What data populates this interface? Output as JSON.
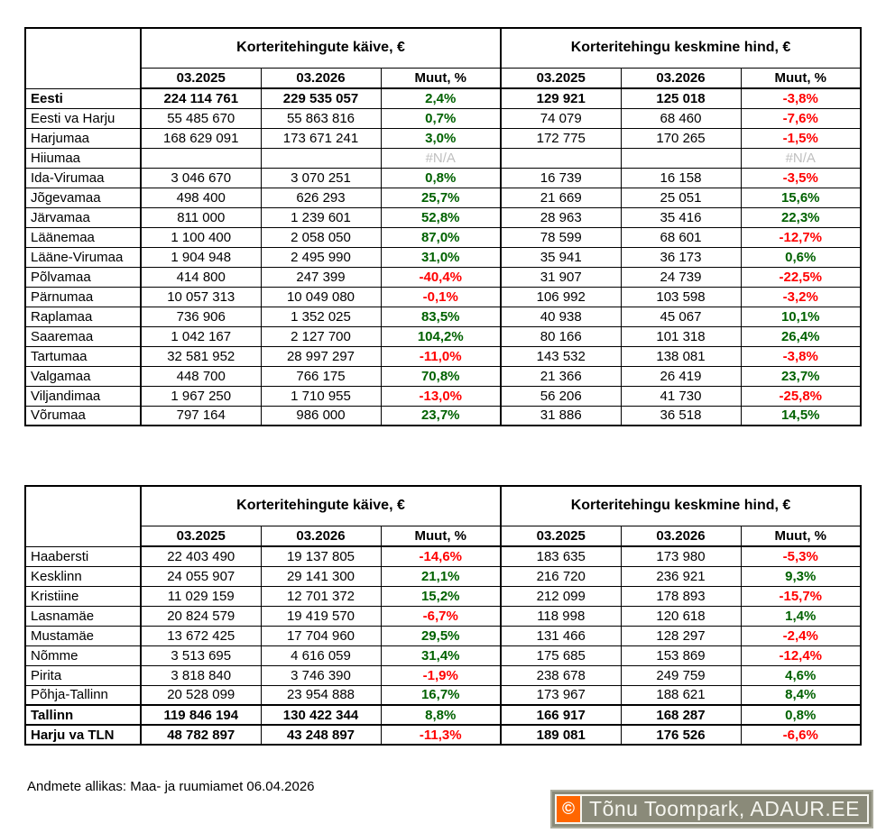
{
  "chart_data": [
    {
      "type": "table",
      "name": "counties",
      "column_groups": [
        "Korteritehingute käive, €",
        "Korteritehingu keskmine hind, €"
      ],
      "columns": [
        "03.2025",
        "03.2026",
        "Muut, %",
        "03.2025",
        "03.2026",
        "Muut, %"
      ],
      "rows": [
        {
          "name": "Eesti",
          "bold": true,
          "cells": [
            "224 114 761",
            "229 535 057",
            "2,4%",
            "129 921",
            "125 018",
            "-3,8%"
          ]
        },
        {
          "name": "Eesti va Harju",
          "cells": [
            "55 485 670",
            "55 863 816",
            "0,7%",
            "74 079",
            "68 460",
            "-7,6%"
          ]
        },
        {
          "name": "Harjumaa",
          "cells": [
            "168 629 091",
            "173 671 241",
            "3,0%",
            "172 775",
            "170 265",
            "-1,5%"
          ]
        },
        {
          "name": "Hiiumaa",
          "cells": [
            "",
            "",
            "#N/A",
            "",
            "",
            "#N/A"
          ]
        },
        {
          "name": "Ida-Virumaa",
          "cells": [
            "3 046 670",
            "3 070 251",
            "0,8%",
            "16 739",
            "16 158",
            "-3,5%"
          ]
        },
        {
          "name": "Jõgevamaa",
          "cells": [
            "498 400",
            "626 293",
            "25,7%",
            "21 669",
            "25 051",
            "15,6%"
          ]
        },
        {
          "name": "Järvamaa",
          "cells": [
            "811 000",
            "1 239 601",
            "52,8%",
            "28 963",
            "35 416",
            "22,3%"
          ]
        },
        {
          "name": "Läänemaa",
          "cells": [
            "1 100 400",
            "2 058 050",
            "87,0%",
            "78 599",
            "68 601",
            "-12,7%"
          ]
        },
        {
          "name": "Lääne-Virumaa",
          "cells": [
            "1 904 948",
            "2 495 990",
            "31,0%",
            "35 941",
            "36 173",
            "0,6%"
          ]
        },
        {
          "name": "Põlvamaa",
          "cells": [
            "414 800",
            "247 399",
            "-40,4%",
            "31 907",
            "24 739",
            "-22,5%"
          ]
        },
        {
          "name": "Pärnumaa",
          "cells": [
            "10 057 313",
            "10 049 080",
            "-0,1%",
            "106 992",
            "103 598",
            "-3,2%"
          ]
        },
        {
          "name": "Raplamaa",
          "cells": [
            "736 906",
            "1 352 025",
            "83,5%",
            "40 938",
            "45 067",
            "10,1%"
          ]
        },
        {
          "name": "Saaremaa",
          "cells": [
            "1 042 167",
            "2 127 700",
            "104,2%",
            "80 166",
            "101 318",
            "26,4%"
          ]
        },
        {
          "name": "Tartumaa",
          "cells": [
            "32 581 952",
            "28 997 297",
            "-11,0%",
            "143 532",
            "138 081",
            "-3,8%"
          ]
        },
        {
          "name": "Valgamaa",
          "cells": [
            "448 700",
            "766 175",
            "70,8%",
            "21 366",
            "26 419",
            "23,7%"
          ]
        },
        {
          "name": "Viljandimaa",
          "cells": [
            "1 967 250",
            "1 710 955",
            "-13,0%",
            "56 206",
            "41 730",
            "-25,8%"
          ]
        },
        {
          "name": "Võrumaa",
          "cells": [
            "797 164",
            "986 000",
            "23,7%",
            "31 886",
            "36 518",
            "14,5%"
          ]
        }
      ]
    },
    {
      "type": "table",
      "name": "tallinn-districts",
      "column_groups": [
        "Korteritehingute käive, €",
        "Korteritehingu keskmine hind, €"
      ],
      "columns": [
        "03.2025",
        "03.2026",
        "Muut, %",
        "03.2025",
        "03.2026",
        "Muut, %"
      ],
      "rows": [
        {
          "name": "Haabersti",
          "cells": [
            "22 403 490",
            "19 137 805",
            "-14,6%",
            "183 635",
            "173 980",
            "-5,3%"
          ]
        },
        {
          "name": "Kesklinn",
          "cells": [
            "24 055 907",
            "29 141 300",
            "21,1%",
            "216 720",
            "236 921",
            "9,3%"
          ]
        },
        {
          "name": "Kristiine",
          "cells": [
            "11 029 159",
            "12 701 372",
            "15,2%",
            "212 099",
            "178 893",
            "-15,7%"
          ]
        },
        {
          "name": "Lasnamäe",
          "cells": [
            "20 824 579",
            "19 419 570",
            "-6,7%",
            "118 998",
            "120 618",
            "1,4%"
          ]
        },
        {
          "name": "Mustamäe",
          "cells": [
            "13 672 425",
            "17 704 960",
            "29,5%",
            "131 466",
            "128 297",
            "-2,4%"
          ]
        },
        {
          "name": "Nõmme",
          "cells": [
            "3 513 695",
            "4 616 059",
            "31,4%",
            "175 685",
            "153 869",
            "-12,4%"
          ]
        },
        {
          "name": "Pirita",
          "cells": [
            "3 818 840",
            "3 746 390",
            "-1,9%",
            "238 678",
            "249 759",
            "4,6%"
          ]
        },
        {
          "name": "Põhja-Tallinn",
          "cells": [
            "20 528 099",
            "23 954 888",
            "16,7%",
            "173 967",
            "188 621",
            "8,4%"
          ]
        },
        {
          "name": "Tallinn",
          "bold": true,
          "thick_top": true,
          "cells": [
            "119 846 194",
            "130 422 344",
            "8,8%",
            "166 917",
            "168 287",
            "0,8%"
          ]
        },
        {
          "name": "Harju va TLN",
          "bold": true,
          "thick_top": true,
          "cells": [
            "48 782 897",
            "43 248 897",
            "-11,3%",
            "189 081",
            "176 526",
            "-6,6%"
          ]
        }
      ]
    }
  ],
  "footer": {
    "source_note": "Andmete allikas: Maa- ja ruumiamet 06.04.2026"
  },
  "watermark": {
    "copyright_symbol": "©",
    "text": "Tõnu Toompark, ADAUR.EE"
  },
  "colors": {
    "positive": "#006100",
    "negative": "#FF0000",
    "not_available": "#BFBFBF",
    "border": "#000000",
    "watermark_background": "#8A8A79",
    "watermark_accent": "#FF6600",
    "watermark_text": "#F5F5EF"
  }
}
